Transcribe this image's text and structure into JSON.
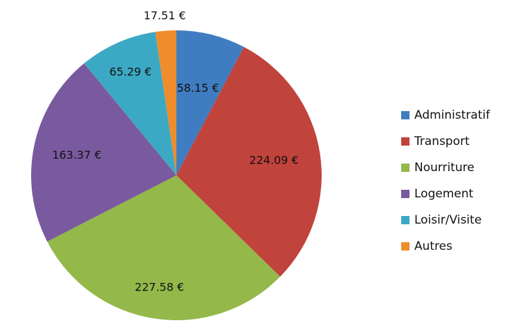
{
  "chart_data": {
    "type": "pie",
    "title": "",
    "unit": "€",
    "categories": [
      "Administratif",
      "Transport",
      "Nourriture",
      "Logement",
      "Loisir/Visite",
      "Autres"
    ],
    "values": [
      58.15,
      224.09,
      227.58,
      163.37,
      65.29,
      17.51
    ],
    "labels": [
      "58.15 €",
      "224.09 €",
      "227.58 €",
      "163.37 €",
      "65.29 €",
      "17.51 €"
    ],
    "colors": [
      "#3f7dc0",
      "#c0433c",
      "#94b84a",
      "#7a5a9e",
      "#3ca9c4",
      "#ef8c2c"
    ],
    "start_angle_deg": 0,
    "direction": "clockwise",
    "legend_position": "right"
  },
  "legend": {
    "items": [
      {
        "label": "Administratif",
        "color": "#3f7dc0"
      },
      {
        "label": "Transport",
        "color": "#c0433c"
      },
      {
        "label": "Nourriture",
        "color": "#94b84a"
      },
      {
        "label": "Logement",
        "color": "#7a5a9e"
      },
      {
        "label": "Loisir/Visite",
        "color": "#3ca9c4"
      },
      {
        "label": "Autres",
        "color": "#ef8c2c"
      }
    ]
  }
}
